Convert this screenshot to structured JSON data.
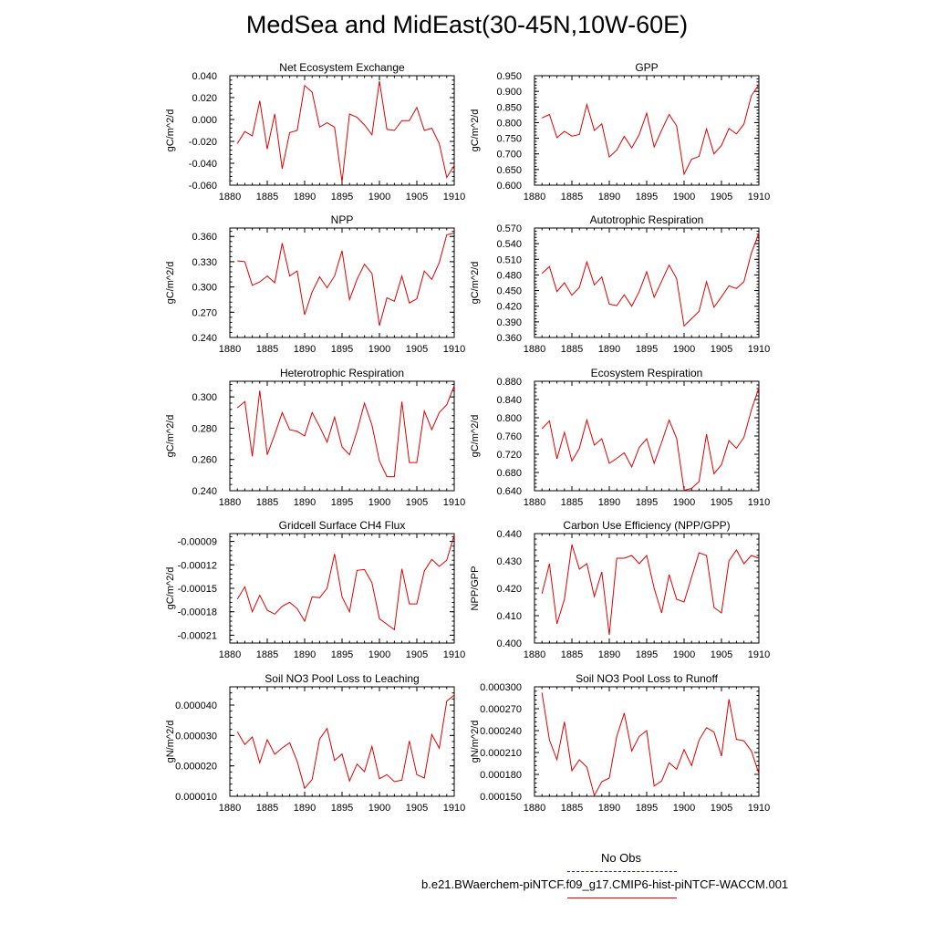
{
  "title": "MedSea and MidEast(30-45N,10W-60E)",
  "legend": {
    "items": [
      {
        "label": "No Obs",
        "color": "#1f1fdf",
        "style": "dashed"
      },
      {
        "label": "b.e21.BWaerchem-piNTCF.f09_g17.CMIP6-hist-piNTCF-WACCM.001",
        "color": "#e00000",
        "style": "solid"
      }
    ]
  },
  "chart_data": [
    {
      "type": "line",
      "title": "Net Ecosystem Exchange",
      "ylabel": "gC/m^2/d",
      "xlim": [
        1880,
        1910
      ],
      "ylim": [
        -0.06,
        0.04
      ],
      "xticks": [
        "1880",
        "1885",
        "1890",
        "1895",
        "1900",
        "1905",
        "1910"
      ],
      "yticks": [
        "-0.060",
        "-0.040",
        "-0.020",
        "0.000",
        "0.020",
        "0.040"
      ],
      "ytick_values": [
        -0.06,
        -0.04,
        -0.02,
        0,
        0.02,
        0.04
      ],
      "x_start": 1881,
      "color": "#e00000",
      "values": [
        -0.022,
        -0.011,
        -0.015,
        0.017,
        -0.027,
        0.005,
        -0.045,
        -0.012,
        -0.01,
        0.031,
        0.025,
        -0.007,
        -0.003,
        -0.007,
        -0.057,
        0.005,
        0.002,
        -0.005,
        -0.014,
        0.035,
        -0.009,
        -0.01,
        -0.001,
        -0.001,
        0.011,
        -0.01,
        -0.008,
        -0.022,
        -0.053,
        -0.042
      ]
    },
    {
      "type": "line",
      "title": "GPP",
      "ylabel": "gC/m^2/d",
      "xlim": [
        1880,
        1910
      ],
      "ylim": [
        0.6,
        0.95
      ],
      "xticks": [
        "1880",
        "1885",
        "1890",
        "1895",
        "1900",
        "1905",
        "1910"
      ],
      "yticks": [
        "0.600",
        "0.650",
        "0.700",
        "0.750",
        "0.800",
        "0.850",
        "0.900",
        "0.950"
      ],
      "ytick_values": [
        0.6,
        0.65,
        0.7,
        0.75,
        0.8,
        0.85,
        0.9,
        0.95
      ],
      "x_start": 1881,
      "color": "#e00000",
      "values": [
        0.815,
        0.826,
        0.752,
        0.772,
        0.757,
        0.762,
        0.858,
        0.775,
        0.796,
        0.69,
        0.712,
        0.756,
        0.719,
        0.762,
        0.83,
        0.722,
        0.776,
        0.826,
        0.79,
        0.635,
        0.683,
        0.692,
        0.78,
        0.7,
        0.727,
        0.781,
        0.764,
        0.795,
        0.886,
        0.922
      ]
    },
    {
      "type": "line",
      "title": "NPP",
      "ylabel": "gC/m^2/d",
      "xlim": [
        1880,
        1910
      ],
      "ylim": [
        0.24,
        0.37
      ],
      "xticks": [
        "1880",
        "1885",
        "1890",
        "1895",
        "1900",
        "1905",
        "1910"
      ],
      "yticks": [
        "0.240",
        "0.270",
        "0.300",
        "0.330",
        "0.360"
      ],
      "ytick_values": [
        0.24,
        0.27,
        0.3,
        0.33,
        0.36
      ],
      "x_start": 1881,
      "color": "#e00000",
      "values": [
        0.331,
        0.33,
        0.302,
        0.306,
        0.313,
        0.305,
        0.352,
        0.313,
        0.319,
        0.267,
        0.294,
        0.312,
        0.299,
        0.313,
        0.343,
        0.285,
        0.309,
        0.327,
        0.316,
        0.254,
        0.287,
        0.283,
        0.313,
        0.281,
        0.286,
        0.319,
        0.309,
        0.329,
        0.362,
        0.364
      ]
    },
    {
      "type": "line",
      "title": "Autotrophic Respiration",
      "ylabel": "gC/m^2/d",
      "xlim": [
        1880,
        1910
      ],
      "ylim": [
        0.36,
        0.57
      ],
      "xticks": [
        "1880",
        "1885",
        "1890",
        "1895",
        "1900",
        "1905",
        "1910"
      ],
      "yticks": [
        "0.360",
        "0.390",
        "0.420",
        "0.450",
        "0.480",
        "0.510",
        "0.540",
        "0.570"
      ],
      "ytick_values": [
        0.36,
        0.39,
        0.42,
        0.45,
        0.48,
        0.51,
        0.54,
        0.57
      ],
      "x_start": 1881,
      "color": "#e00000",
      "values": [
        0.483,
        0.496,
        0.448,
        0.465,
        0.441,
        0.456,
        0.505,
        0.461,
        0.476,
        0.424,
        0.421,
        0.442,
        0.42,
        0.448,
        0.486,
        0.437,
        0.468,
        0.499,
        0.473,
        0.382,
        0.396,
        0.41,
        0.467,
        0.418,
        0.438,
        0.459,
        0.454,
        0.467,
        0.522,
        0.56
      ]
    },
    {
      "type": "line",
      "title": "Heterotrophic Respiration",
      "ylabel": "gC/m^2/d",
      "xlim": [
        1880,
        1910
      ],
      "ylim": [
        0.24,
        0.31
      ],
      "xticks": [
        "1880",
        "1885",
        "1890",
        "1895",
        "1900",
        "1905",
        "1910"
      ],
      "yticks": [
        "0.240",
        "0.260",
        "0.280",
        "0.300"
      ],
      "ytick_values": [
        0.24,
        0.26,
        0.28,
        0.3
      ],
      "x_start": 1881,
      "color": "#e00000",
      "values": [
        0.293,
        0.297,
        0.262,
        0.304,
        0.263,
        0.276,
        0.29,
        0.279,
        0.278,
        0.275,
        0.29,
        0.281,
        0.271,
        0.287,
        0.268,
        0.263,
        0.278,
        0.296,
        0.282,
        0.259,
        0.249,
        0.249,
        0.297,
        0.258,
        0.258,
        0.291,
        0.279,
        0.29,
        0.295,
        0.307
      ]
    },
    {
      "type": "line",
      "title": "Ecosystem Respiration",
      "ylabel": "gC/m^2/d",
      "xlim": [
        1880,
        1910
      ],
      "ylim": [
        0.64,
        0.88
      ],
      "xticks": [
        "1880",
        "1885",
        "1890",
        "1895",
        "1900",
        "1905",
        "1910"
      ],
      "yticks": [
        "0.640",
        "0.680",
        "0.720",
        "0.760",
        "0.800",
        "0.840",
        "0.880"
      ],
      "ytick_values": [
        0.64,
        0.68,
        0.72,
        0.76,
        0.8,
        0.84,
        0.88
      ],
      "x_start": 1881,
      "color": "#e00000",
      "values": [
        0.776,
        0.793,
        0.71,
        0.768,
        0.705,
        0.733,
        0.795,
        0.74,
        0.754,
        0.7,
        0.711,
        0.723,
        0.692,
        0.735,
        0.754,
        0.7,
        0.746,
        0.795,
        0.755,
        0.641,
        0.645,
        0.66,
        0.764,
        0.677,
        0.697,
        0.75,
        0.733,
        0.757,
        0.817,
        0.866
      ]
    },
    {
      "type": "line",
      "title": "Gridcell Surface CH4 Flux",
      "ylabel": "gC/m^2/d",
      "xlim": [
        1880,
        1910
      ],
      "ylim": [
        -0.00022,
        -8e-05
      ],
      "xticks": [
        "1880",
        "1885",
        "1890",
        "1895",
        "1900",
        "1905",
        "1910"
      ],
      "yticks": [
        "-0.00021",
        "-0.00018",
        "-0.00015",
        "-0.00012",
        "-0.00009"
      ],
      "ytick_values": [
        -0.00021,
        -0.00018,
        -0.00015,
        -0.00012,
        -9e-05
      ],
      "x_start": 1881,
      "color": "#e00000",
      "values": [
        -0.000164,
        -0.000148,
        -0.00018,
        -0.000159,
        -0.000178,
        -0.000183,
        -0.000173,
        -0.000168,
        -0.000176,
        -0.000192,
        -0.000161,
        -0.000162,
        -0.00015,
        -0.000106,
        -0.000161,
        -0.00018,
        -0.000127,
        -0.000126,
        -0.000143,
        -0.000189,
        -0.000196,
        -0.000203,
        -0.000125,
        -0.00017,
        -0.00017,
        -0.000128,
        -0.000113,
        -0.000122,
        -0.000114,
        -8.2e-05
      ]
    },
    {
      "type": "line",
      "title": "Carbon Use Efficiency (NPP/GPP)",
      "ylabel": "NPP/GPP",
      "xlim": [
        1880,
        1910
      ],
      "ylim": [
        0.4,
        0.44
      ],
      "xticks": [
        "1880",
        "1885",
        "1890",
        "1895",
        "1900",
        "1905",
        "1910"
      ],
      "yticks": [
        "0.400",
        "0.410",
        "0.420",
        "0.430",
        "0.440"
      ],
      "ytick_values": [
        0.4,
        0.41,
        0.42,
        0.43,
        0.44
      ],
      "x_start": 1881,
      "color": "#e00000",
      "values": [
        0.418,
        0.429,
        0.407,
        0.416,
        0.436,
        0.427,
        0.429,
        0.417,
        0.426,
        0.403,
        0.431,
        0.431,
        0.432,
        0.429,
        0.432,
        0.42,
        0.411,
        0.425,
        0.416,
        0.415,
        0.424,
        0.433,
        0.432,
        0.413,
        0.411,
        0.43,
        0.434,
        0.429,
        0.432,
        0.431
      ]
    },
    {
      "type": "line",
      "title": "Soil NO3 Pool Loss to Leaching",
      "ylabel": "gN/m^2/d",
      "xlim": [
        1880,
        1910
      ],
      "ylim": [
        1e-05,
        4.6e-05
      ],
      "xticks": [
        "1880",
        "1885",
        "1890",
        "1895",
        "1900",
        "1905",
        "1910"
      ],
      "yticks": [
        "0.000010",
        "0.000020",
        "0.000030",
        "0.000040"
      ],
      "ytick_values": [
        1e-05,
        2e-05,
        3e-05,
        4e-05
      ],
      "x_start": 1881,
      "color": "#e00000",
      "values": [
        3.12e-05,
        2.7e-05,
        2.95e-05,
        2.1e-05,
        2.86e-05,
        2.38e-05,
        2.59e-05,
        2.76e-05,
        2.15e-05,
        1.26e-05,
        1.55e-05,
        2.88e-05,
        3.23e-05,
        2.18e-05,
        2.39e-05,
        1.5e-05,
        2.06e-05,
        1.81e-05,
        2.64e-05,
        1.58e-05,
        1.71e-05,
        1.48e-05,
        1.53e-05,
        2.82e-05,
        1.71e-05,
        1.6e-05,
        3.03e-05,
        2.58e-05,
        4.13e-05,
        4.33e-05
      ]
    },
    {
      "type": "line",
      "title": "Soil NO3 Pool Loss to Runoff",
      "ylabel": "gN/m^2/d",
      "xlim": [
        1880,
        1910
      ],
      "ylim": [
        0.00015,
        0.0003
      ],
      "xticks": [
        "1880",
        "1885",
        "1890",
        "1895",
        "1900",
        "1905",
        "1910"
      ],
      "yticks": [
        "0.000150",
        "0.000180",
        "0.000210",
        "0.000240",
        "0.000270",
        "0.000300"
      ],
      "ytick_values": [
        0.00015,
        0.00018,
        0.00021,
        0.00024,
        0.00027,
        0.0003
      ],
      "x_start": 1881,
      "color": "#e00000",
      "values": [
        0.000292,
        0.000227,
        0.0002,
        0.000252,
        0.000185,
        0.0002,
        0.00019,
        0.000151,
        0.00017,
        0.000175,
        0.000232,
        0.000264,
        0.000212,
        0.000232,
        0.00024,
        0.000164,
        0.000171,
        0.000196,
        0.000187,
        0.000214,
        0.000192,
        0.000227,
        0.000244,
        0.000238,
        0.000205,
        0.000283,
        0.000228,
        0.000226,
        0.000212,
        0.000181
      ]
    }
  ]
}
